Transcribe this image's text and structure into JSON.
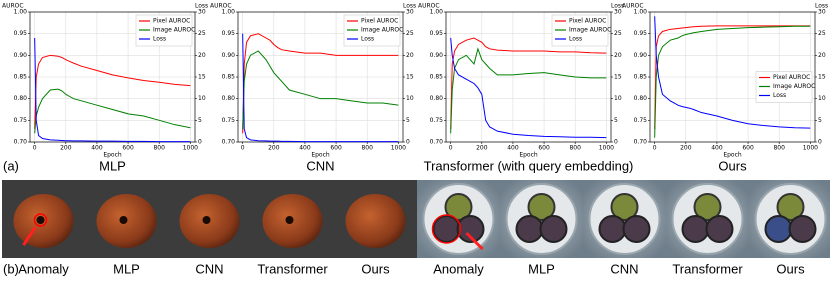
{
  "chart_data": [
    {
      "type": "line",
      "title": "MLP",
      "ylabel": "AUROC",
      "y2label": "Loss",
      "xlabel": "Epoch",
      "legend": "upper right",
      "x": [
        0,
        10,
        25,
        50,
        100,
        150,
        175,
        200,
        225,
        250,
        300,
        400,
        500,
        600,
        700,
        800,
        900,
        1000
      ],
      "xlim": [
        -30,
        1030
      ],
      "xticks": [
        0,
        200,
        400,
        600,
        800,
        1000
      ],
      "ylim": [
        0.7,
        1.0
      ],
      "yticks": [
        {
          "value": 0.7,
          "label": "0.70"
        },
        0.75,
        {
          "value": 0.8,
          "label": "0.80"
        },
        0.85,
        {
          "value": 0.9,
          "label": "0.90"
        },
        0.95,
        {
          "value": 1.0,
          "label": "1.00"
        }
      ],
      "y2lim": [
        0,
        30
      ],
      "y2ticks": [
        0,
        5,
        10,
        15,
        20,
        25,
        30
      ],
      "grid": true,
      "series": [
        {
          "name": "Pixel AUROC",
          "color": "#ff0000",
          "values": [
            0.73,
            0.85,
            0.88,
            0.895,
            0.9,
            0.898,
            0.895,
            0.89,
            0.886,
            0.882,
            0.875,
            0.865,
            0.855,
            0.848,
            0.842,
            0.838,
            0.833,
            0.83
          ]
        },
        {
          "name": "Image AUROC",
          "color": "#008000",
          "values": [
            0.72,
            0.76,
            0.78,
            0.8,
            0.82,
            0.822,
            0.818,
            0.81,
            0.805,
            0.8,
            0.795,
            0.785,
            0.775,
            0.765,
            0.76,
            0.75,
            0.74,
            0.733
          ]
        },
        {
          "name": "Loss",
          "color": "#0000ff",
          "axis": "y2",
          "values": [
            24,
            5,
            1.5,
            0.8,
            0.5,
            0.4,
            0.35,
            0.3,
            0.3,
            0.25,
            0.25,
            0.2,
            0.2,
            0.15,
            0.15,
            0.1,
            0.1,
            0.1
          ]
        }
      ]
    },
    {
      "type": "line",
      "title": "CNN",
      "ylabel": "AUROC",
      "y2label": "Loss",
      "xlabel": "Epoch",
      "legend": "upper right",
      "x": [
        0,
        10,
        25,
        50,
        100,
        150,
        175,
        200,
        225,
        250,
        300,
        400,
        500,
        600,
        700,
        800,
        900,
        1000
      ],
      "xlim": [
        -30,
        1030
      ],
      "xticks": [
        0,
        200,
        400,
        600,
        800,
        1000
      ],
      "ylim": [
        0.7,
        1.0
      ],
      "yticks": [
        {
          "value": 0.7,
          "label": "0.70"
        },
        0.75,
        {
          "value": 0.8,
          "label": "0.80"
        },
        0.85,
        {
          "value": 0.9,
          "label": "0.90"
        },
        0.95,
        {
          "value": 1.0,
          "label": "1.00"
        }
      ],
      "y2lim": [
        0,
        30
      ],
      "y2ticks": [
        0,
        5,
        10,
        15,
        20,
        25,
        30
      ],
      "grid": true,
      "series": [
        {
          "name": "Pixel AUROC",
          "color": "#ff0000",
          "values": [
            0.72,
            0.88,
            0.93,
            0.945,
            0.95,
            0.94,
            0.935,
            0.925,
            0.918,
            0.913,
            0.91,
            0.905,
            0.905,
            0.9,
            0.9,
            0.9,
            0.9,
            0.9
          ]
        },
        {
          "name": "Image AUROC",
          "color": "#008000",
          "values": [
            0.73,
            0.84,
            0.88,
            0.9,
            0.91,
            0.89,
            0.875,
            0.86,
            0.85,
            0.84,
            0.82,
            0.81,
            0.8,
            0.8,
            0.795,
            0.79,
            0.79,
            0.785
          ]
        },
        {
          "name": "Loss",
          "color": "#0000ff",
          "axis": "y2",
          "values": [
            25,
            3,
            1,
            0.5,
            0.3,
            0.25,
            0.2,
            0.2,
            0.2,
            0.15,
            0.15,
            0.1,
            0.1,
            0.1,
            0.1,
            0.1,
            0.1,
            0.1
          ]
        }
      ]
    },
    {
      "type": "line",
      "title": "Transformer (with query embedding)",
      "ylabel": "AUROC",
      "y2label": "Loss",
      "xlabel": "Epoch",
      "legend": "upper right",
      "x": [
        0,
        10,
        25,
        50,
        100,
        150,
        175,
        200,
        225,
        250,
        300,
        400,
        500,
        600,
        700,
        800,
        900,
        1000
      ],
      "xlim": [
        -30,
        1030
      ],
      "xticks": [
        0,
        200,
        400,
        600,
        800,
        1000
      ],
      "ylim": [
        0.7,
        1.0
      ],
      "yticks": [
        {
          "value": 0.7,
          "label": "0.70"
        },
        0.75,
        {
          "value": 0.8,
          "label": "0.80"
        },
        0.85,
        {
          "value": 0.9,
          "label": "0.90"
        },
        0.95,
        {
          "value": 1.0,
          "label": "1.00"
        }
      ],
      "y2lim": [
        0,
        30
      ],
      "y2ticks": [
        0,
        5,
        10,
        15,
        20,
        25,
        30
      ],
      "grid": true,
      "series": [
        {
          "name": "Pixel AUROC",
          "color": "#ff0000",
          "values": [
            0.73,
            0.88,
            0.91,
            0.925,
            0.935,
            0.94,
            0.935,
            0.93,
            0.92,
            0.915,
            0.912,
            0.91,
            0.91,
            0.91,
            0.908,
            0.908,
            0.906,
            0.905
          ]
        },
        {
          "name": "Image AUROC",
          "color": "#008000",
          "values": [
            0.72,
            0.82,
            0.87,
            0.89,
            0.9,
            0.88,
            0.915,
            0.89,
            0.88,
            0.87,
            0.855,
            0.855,
            0.858,
            0.86,
            0.855,
            0.85,
            0.848,
            0.848
          ]
        },
        {
          "name": "Loss",
          "color": "#0000ff",
          "axis": "y2",
          "values": [
            24,
            20,
            17,
            15.5,
            14.5,
            13.5,
            12.5,
            11,
            5,
            3.5,
            2.5,
            1.8,
            1.5,
            1.3,
            1.2,
            1.1,
            1.1,
            1
          ]
        }
      ]
    },
    {
      "type": "line",
      "title": "Ours",
      "ylabel": "AUROC",
      "y2label": "Loss",
      "xlabel": "Epoch",
      "legend": "center right",
      "x": [
        0,
        10,
        25,
        50,
        100,
        150,
        175,
        200,
        225,
        250,
        300,
        400,
        500,
        600,
        700,
        800,
        900,
        1000
      ],
      "xlim": [
        -30,
        1030
      ],
      "xticks": [
        0,
        200,
        400,
        600,
        800,
        1000
      ],
      "ylim": [
        0.7,
        1.0
      ],
      "yticks": [
        {
          "value": 0.7,
          "label": "0.70"
        },
        0.75,
        {
          "value": 0.8,
          "label": "0.80"
        },
        0.85,
        {
          "value": 0.9,
          "label": "0.90"
        },
        0.95,
        {
          "value": 1.0,
          "label": "1.00"
        }
      ],
      "y2lim": [
        0,
        30
      ],
      "y2ticks": [
        0,
        5,
        10,
        15,
        20,
        25,
        30
      ],
      "grid": true,
      "series": [
        {
          "name": "Pixel AUROC",
          "color": "#ff0000",
          "values": [
            0.73,
            0.92,
            0.945,
            0.955,
            0.96,
            0.962,
            0.963,
            0.964,
            0.965,
            0.966,
            0.967,
            0.968,
            0.968,
            0.968,
            0.968,
            0.968,
            0.968,
            0.968
          ]
        },
        {
          "name": "Image AUROC",
          "color": "#008000",
          "values": [
            0.71,
            0.85,
            0.9,
            0.92,
            0.935,
            0.94,
            0.945,
            0.948,
            0.95,
            0.952,
            0.955,
            0.96,
            0.962,
            0.964,
            0.965,
            0.966,
            0.967,
            0.967
          ]
        },
        {
          "name": "Loss",
          "color": "#0000ff",
          "axis": "y2",
          "values": [
            29,
            20,
            15,
            11,
            9.5,
            8.5,
            8.2,
            8,
            7.8,
            7.5,
            6.8,
            6,
            5,
            4.2,
            3.8,
            3.5,
            3.3,
            3.2
          ]
        }
      ]
    }
  ],
  "panel_a": {
    "label": "(a)"
  },
  "panel_b": {
    "label": "(b)",
    "labels": [
      "Anomaly",
      "MLP",
      "CNN",
      "Transformer",
      "Ours",
      "Anomaly",
      "MLP",
      "CNN",
      "Transformer",
      "Ours"
    ]
  }
}
